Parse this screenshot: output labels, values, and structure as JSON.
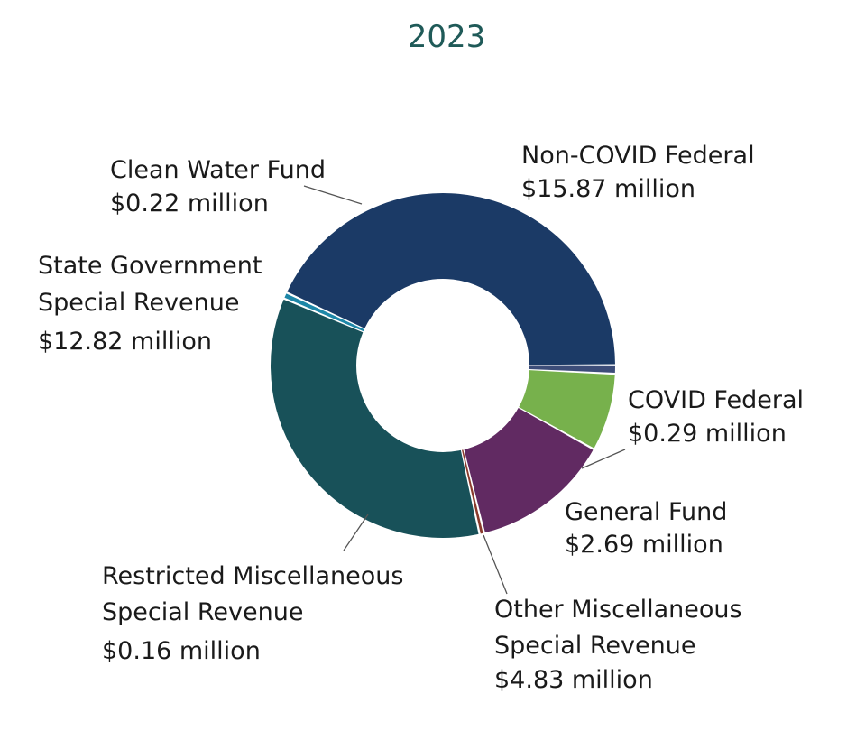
{
  "chart_data": {
    "type": "pie",
    "variant": "donut",
    "title": "2023",
    "unit": "$ million",
    "slices": [
      {
        "name": "Non-COVID Federal",
        "value": 15.87,
        "value_label": "$15.87 million",
        "color": "#1b3a66"
      },
      {
        "name": "COVID Federal",
        "value": 0.29,
        "value_label": "$0.29 million",
        "color": "#3d4d79"
      },
      {
        "name": "General Fund",
        "value": 2.69,
        "value_label": "$2.69 million",
        "color": "#77b14c"
      },
      {
        "name": "Other Miscellaneous Special Revenue",
        "value": 4.83,
        "value_label": "$4.83 million",
        "color": "#612a62"
      },
      {
        "name": "Restricted Miscellaneous Special Revenue",
        "value": 0.16,
        "value_label": "$0.16 million",
        "color": "#8a3a2c"
      },
      {
        "name": "State Government Special Revenue",
        "value": 12.82,
        "value_label": "$12.82 million",
        "color": "#185159"
      },
      {
        "name": "Clean Water Fund",
        "value": 0.22,
        "value_label": "$0.22 million",
        "color": "#1e87a8"
      }
    ],
    "labels": [
      {
        "lines": [
          "Non-COVID Federal",
          "$15.87 million"
        ]
      },
      {
        "lines": [
          "COVID Federal",
          "$0.29 million"
        ]
      },
      {
        "lines": [
          "General Fund",
          "$2.69 million"
        ]
      },
      {
        "lines": [
          "Other Miscellaneous",
          "Special Revenue",
          "$4.83 million"
        ]
      },
      {
        "lines": [
          "Restricted Miscellaneous",
          "Special Revenue",
          "$0.16 million"
        ]
      },
      {
        "lines": [
          "State Government",
          "Special Revenue",
          "$12.82 million"
        ]
      },
      {
        "lines": [
          "Clean Water Fund",
          "$0.22 million"
        ]
      }
    ],
    "legend": "none",
    "grid": false
  }
}
